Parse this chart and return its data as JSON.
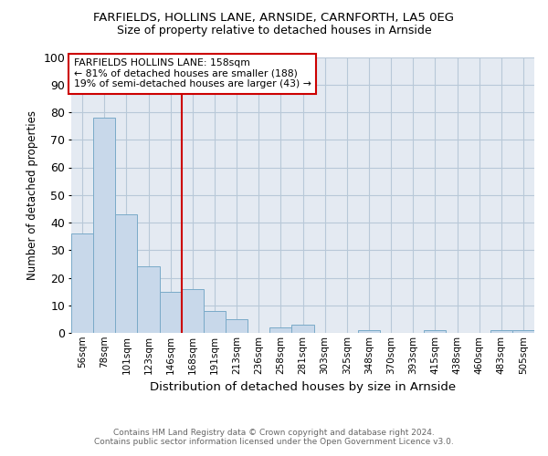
{
  "title1": "FARFIELDS, HOLLINS LANE, ARNSIDE, CARNFORTH, LA5 0EG",
  "title2": "Size of property relative to detached houses in Arnside",
  "xlabel": "Distribution of detached houses by size in Arnside",
  "ylabel": "Number of detached properties",
  "categories": [
    "56sqm",
    "78sqm",
    "101sqm",
    "123sqm",
    "146sqm",
    "168sqm",
    "191sqm",
    "213sqm",
    "236sqm",
    "258sqm",
    "281sqm",
    "303sqm",
    "325sqm",
    "348sqm",
    "370sqm",
    "393sqm",
    "415sqm",
    "438sqm",
    "460sqm",
    "483sqm",
    "505sqm"
  ],
  "values": [
    36,
    78,
    43,
    24,
    15,
    16,
    8,
    5,
    0,
    2,
    3,
    0,
    0,
    1,
    0,
    0,
    1,
    0,
    0,
    1,
    1
  ],
  "bar_color": "#c8d8ea",
  "bar_edge_color": "#7aaac8",
  "vline_x": 4.5,
  "vline_color": "#cc0000",
  "annotation_text": "FARFIELDS HOLLINS LANE: 158sqm\n← 81% of detached houses are smaller (188)\n19% of semi-detached houses are larger (43) →",
  "annotation_box_color": "#ffffff",
  "annotation_box_edge": "#cc0000",
  "ylim": [
    0,
    100
  ],
  "yticks": [
    0,
    10,
    20,
    30,
    40,
    50,
    60,
    70,
    80,
    90,
    100
  ],
  "grid_color": "#b8c8d8",
  "background_color": "#e4eaf2",
  "footer1": "Contains HM Land Registry data © Crown copyright and database right 2024.",
  "footer2": "Contains public sector information licensed under the Open Government Licence v3.0."
}
